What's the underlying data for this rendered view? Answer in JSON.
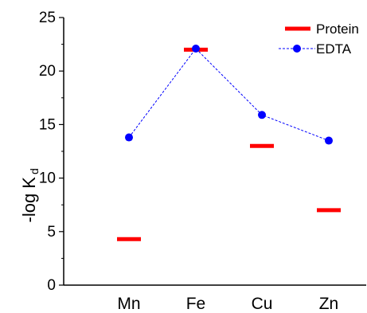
{
  "chart_data": {
    "type": "scatter",
    "categories": [
      "Mn",
      "Fe",
      "Cu",
      "Zn"
    ],
    "ylabel_main": "-log K",
    "ylabel_subscript": "d",
    "ylim": [
      0,
      25
    ],
    "yticks": [
      "0",
      "5",
      "10",
      "15",
      "20",
      "25"
    ],
    "grid": false,
    "legend_position": "top-right",
    "series": [
      {
        "name": "Protein",
        "marker": "bar",
        "color": "#ff0000",
        "values": [
          4.3,
          22.0,
          13.0,
          7.0
        ]
      },
      {
        "name": "EDTA",
        "marker": "circle-dashed-line",
        "color": "#0000ff",
        "values": [
          13.8,
          22.1,
          15.9,
          13.5
        ]
      }
    ]
  }
}
